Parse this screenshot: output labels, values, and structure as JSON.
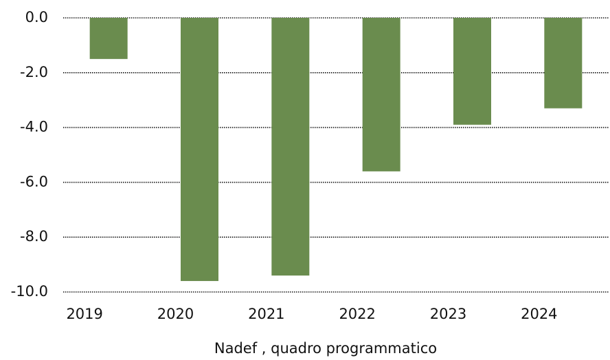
{
  "chart_data": {
    "type": "bar",
    "x_label": "Nadef , quadro programmatico",
    "categories": [
      "2019",
      "2020",
      "2021",
      "2022",
      "2023",
      "2024"
    ],
    "values": [
      -1.5,
      -9.6,
      -9.4,
      -5.6,
      -3.9,
      -3.3
    ],
    "color": "#6a8c4e",
    "ylim": [
      -10,
      0
    ],
    "yticks": [
      {
        "value": 0,
        "label": "0.0"
      },
      {
        "value": -2,
        "label": "-2.0"
      },
      {
        "value": -4,
        "label": "-4.0"
      },
      {
        "value": -6,
        "label": "-6.0"
      },
      {
        "value": -8,
        "label": "-8.0"
      },
      {
        "value": -10,
        "label": "-10.0"
      }
    ],
    "grid": true
  }
}
